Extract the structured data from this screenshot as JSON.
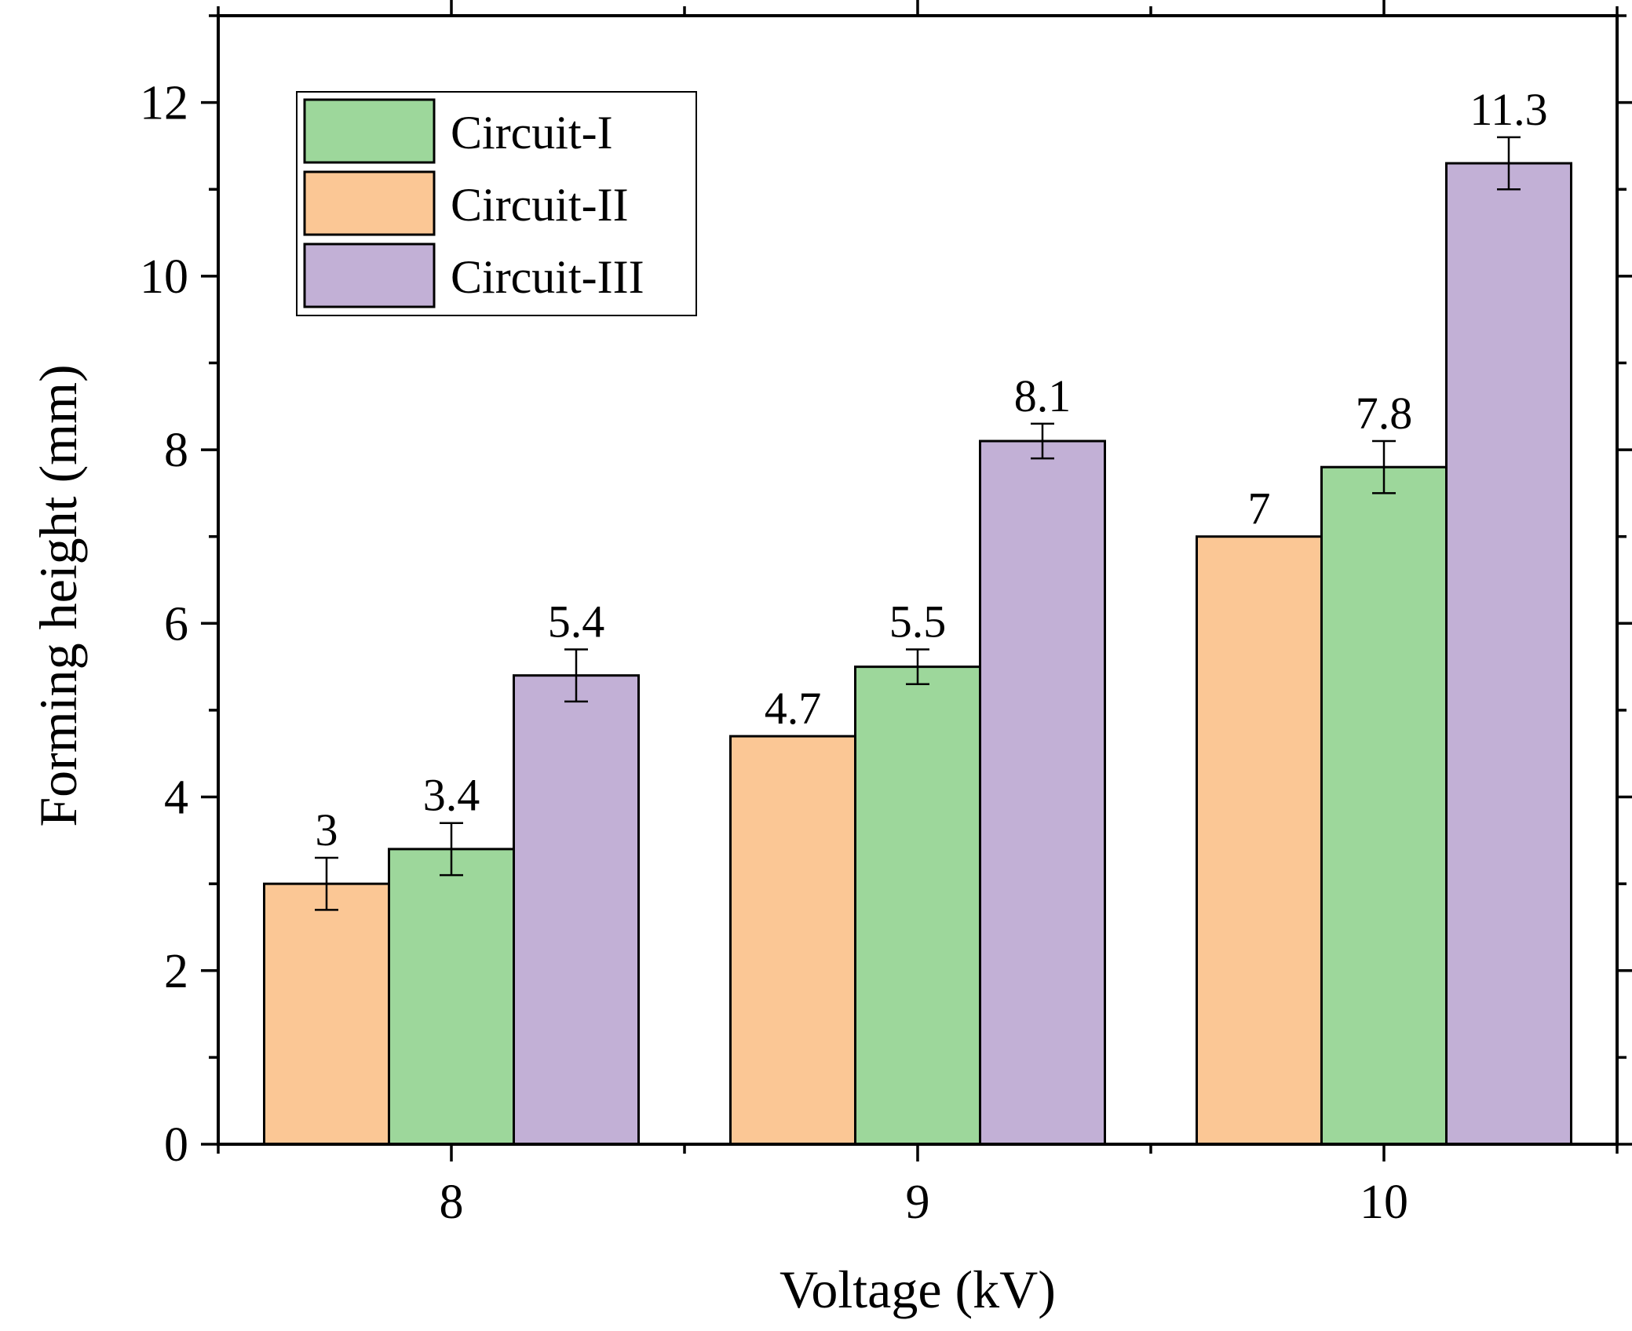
{
  "chart_data": {
    "type": "bar",
    "xlabel": "Voltage (kV)",
    "ylabel": "Forming height (mm)",
    "ylim": [
      0,
      13
    ],
    "yticks": [
      0,
      2,
      4,
      6,
      8,
      10,
      12
    ],
    "categories": [
      "8",
      "9",
      "10"
    ],
    "series": [
      {
        "name": "Circuit-II",
        "color": "#fbc795",
        "values": [
          3,
          4.7,
          7
        ],
        "errors": [
          0.3,
          0,
          0
        ],
        "labels": [
          "3",
          "4.7",
          "7"
        ]
      },
      {
        "name": "Circuit-I",
        "color": "#9dd79b",
        "values": [
          3.4,
          5.5,
          7.8
        ],
        "errors": [
          0.3,
          0.2,
          0.3
        ],
        "labels": [
          "3.4",
          "5.5",
          "7.8"
        ]
      },
      {
        "name": "Circuit-III",
        "color": "#c2b0d6",
        "values": [
          5.4,
          8.1,
          11.3
        ],
        "errors": [
          0.3,
          0.2,
          0.3
        ],
        "labels": [
          "5.4",
          "8.1",
          "11.3"
        ]
      }
    ],
    "legend": {
      "position": "top-left",
      "entries": [
        {
          "name": "Circuit-I",
          "color": "#9dd79b"
        },
        {
          "name": "Circuit-II",
          "color": "#fbc795"
        },
        {
          "name": "Circuit-III",
          "color": "#c2b0d6"
        }
      ]
    },
    "grid": false
  }
}
